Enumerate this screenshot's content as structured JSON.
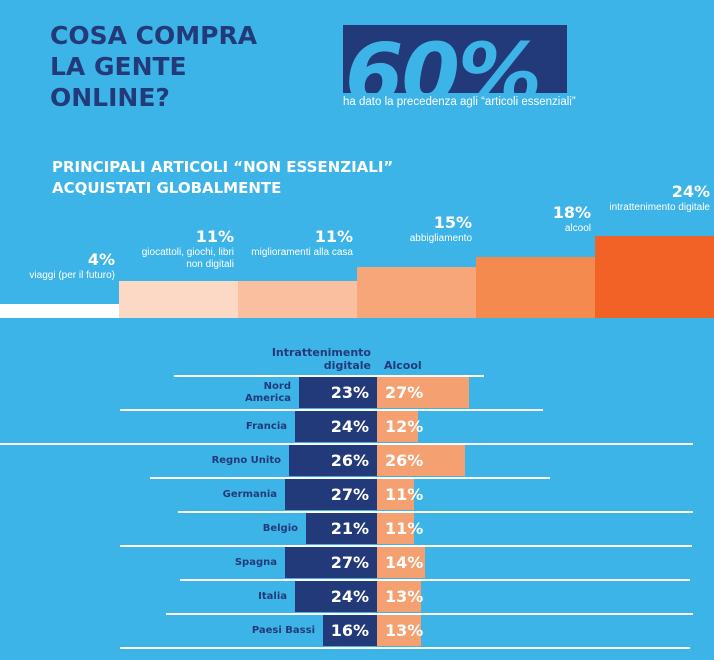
{
  "header": {
    "title_lines": [
      "COSA COMPRA",
      "LA GENTE",
      "ONLINE?"
    ],
    "big_stat": "60%",
    "big_stat_caption": "ha dato la precedenza agli “articoli essenziali”"
  },
  "section": {
    "subtitle_lines": [
      "PRINCIPALI ARTICOLI “NON ESSENZIALI”",
      "ACQUISTATI GLOBALMENTE"
    ]
  },
  "colors": {
    "background": "#3db4e8",
    "navy": "#233a7a",
    "step_colors": [
      "#ffffff",
      "#fcd9c4",
      "#f9bf9e",
      "#f7a679",
      "#f58a4e",
      "#f26125"
    ],
    "right_bar": "#f4a070"
  },
  "chart_data": [
    {
      "type": "bar",
      "title": "PRINCIPALI ARTICOLI “NON ESSENZIALI” ACQUISTATI GLOBALMENTE",
      "categories": [
        "viaggi (per il futuro)",
        "giocattoli, giochi, libri non digitali",
        "miglioramenti alla casa",
        "abbigliamento",
        "alcool",
        "intrattenimento digitale"
      ],
      "labels": [
        "4%",
        "11%",
        "11%",
        "15%",
        "18%",
        "24%"
      ],
      "values": [
        4,
        11,
        11,
        15,
        18,
        24
      ],
      "grid": false
    },
    {
      "type": "bar",
      "orientation": "horizontal-diverging",
      "categories": [
        "Nord America",
        "Francia",
        "Regno Unito",
        "Germania",
        "Belgio",
        "Spagna",
        "Italia",
        "Paesi Bassi"
      ],
      "series": [
        {
          "name": "Intrattenimento digitale",
          "labels": [
            "23%",
            "24%",
            "26%",
            "27%",
            "21%",
            "27%",
            "24%",
            "16%"
          ],
          "values": [
            23,
            24,
            26,
            27,
            21,
            27,
            24,
            16
          ]
        },
        {
          "name": "Alcool",
          "labels": [
            "27%",
            "12%",
            "26%",
            "11%",
            "11%",
            "14%",
            "13%",
            "13%"
          ],
          "values": [
            27,
            12,
            26,
            11,
            11,
            14,
            13,
            13
          ]
        }
      ],
      "grid": false
    }
  ]
}
